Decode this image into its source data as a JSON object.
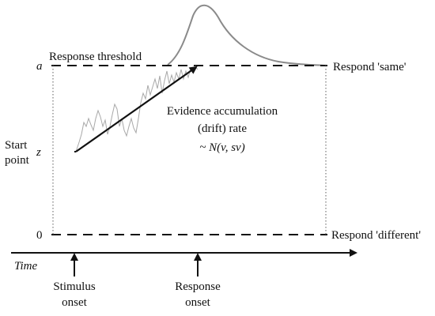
{
  "labels": {
    "threshold_a": "a",
    "start_z": "z",
    "zero": "0",
    "response_threshold": "Response threshold",
    "respond_same": "Respond 'same'",
    "respond_different": "Respond 'different'",
    "start_point_line1": "Start",
    "start_point_line2": "point",
    "drift_line1": "Evidence accumulation",
    "drift_line2": "(drift) rate",
    "drift_formula": "~ N(v, sv)",
    "time": "Time",
    "stimulus_line1": "Stimulus",
    "stimulus_line2": "onset",
    "response_line1": "Response",
    "response_line2": "onset"
  },
  "colors": {
    "line": "#111111",
    "noise_trace": "#a8a8a8",
    "rt_distribution": "#8a8a8a",
    "dotted_bounds": "#777777"
  }
}
